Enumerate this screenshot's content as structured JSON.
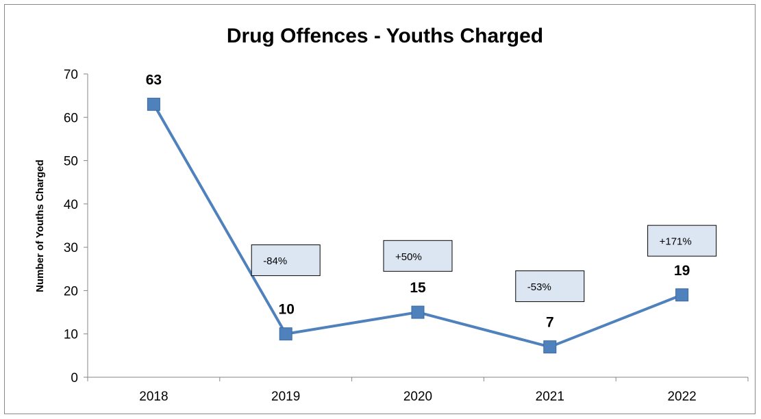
{
  "chart_data": {
    "type": "line",
    "title": "Drug Offences - Youths Charged",
    "xlabel": "",
    "ylabel": "Number of Youths Charged",
    "categories": [
      "2018",
      "2019",
      "2020",
      "2021",
      "2022"
    ],
    "series": [
      {
        "values": [
          63,
          10,
          15,
          7,
          19
        ],
        "color": "#4F81BD"
      }
    ],
    "data_labels": [
      "63",
      "10",
      "15",
      "7",
      "19"
    ],
    "ylim": [
      0,
      70
    ],
    "yticks": [
      0,
      10,
      20,
      30,
      40,
      50,
      60,
      70
    ],
    "grid": false,
    "legend": "none",
    "annotations": [
      {
        "text": "-84%",
        "category": "2019",
        "y": 27
      },
      {
        "text": "+50%",
        "category": "2020",
        "y": 28
      },
      {
        "text": "-53%",
        "category": "2021",
        "y": 21
      },
      {
        "text": "+171%",
        "category": "2022",
        "y": 31.5
      }
    ],
    "annotation_fill": "#DCE6F2"
  }
}
